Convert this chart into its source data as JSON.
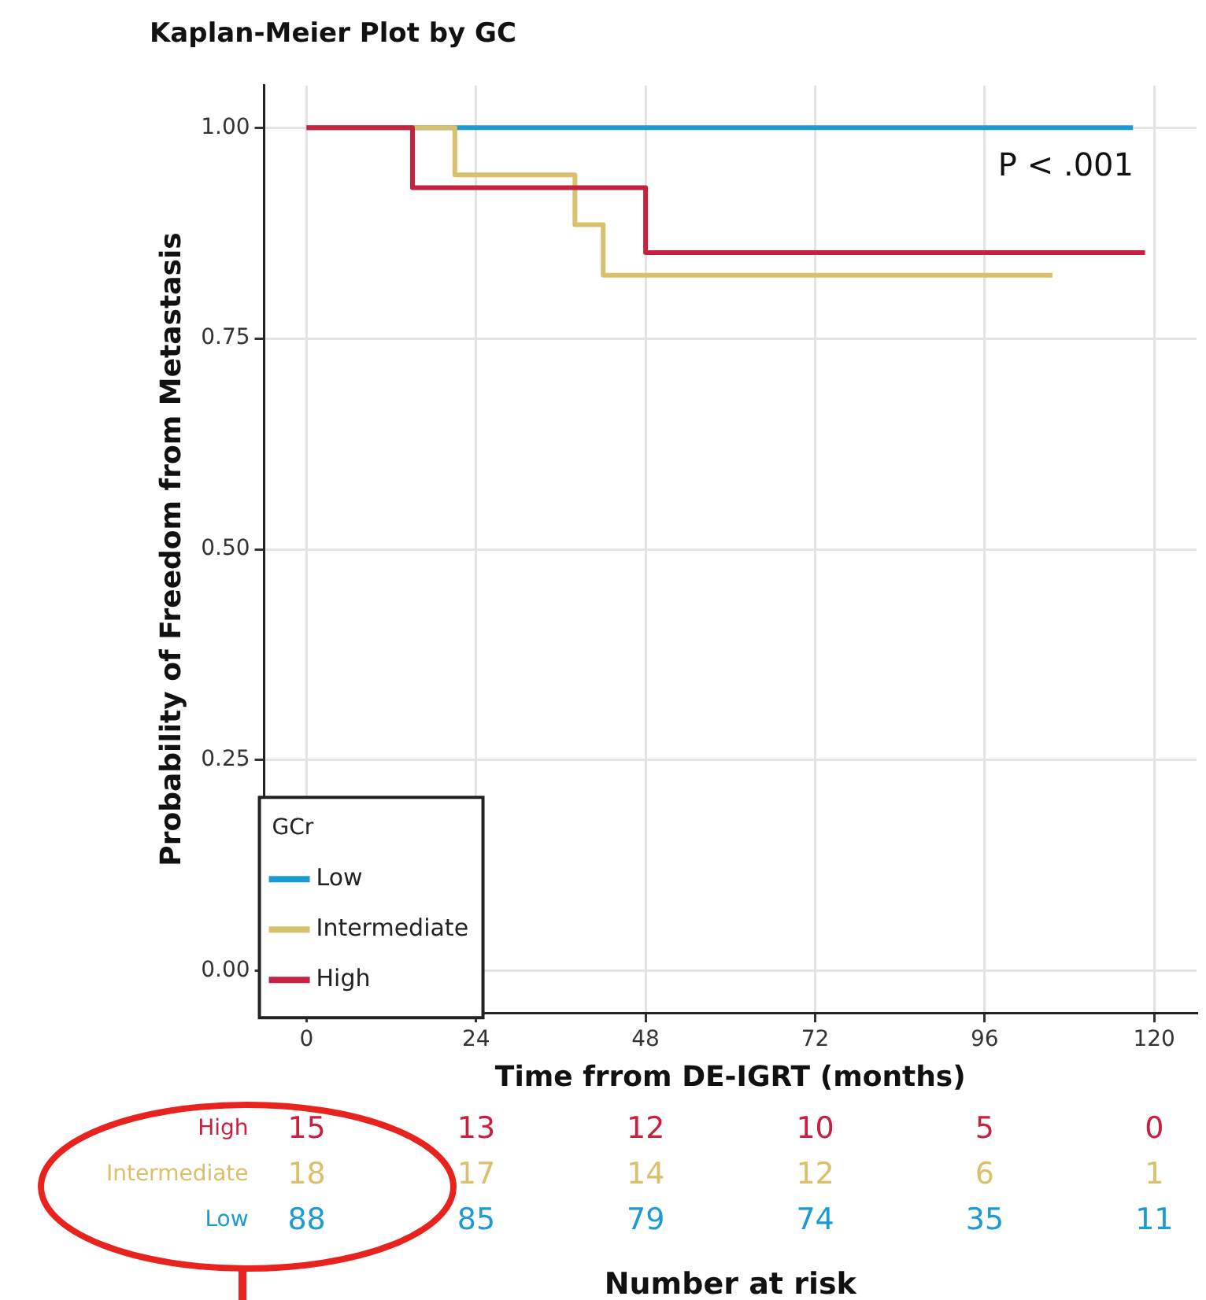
{
  "chart_data": {
    "type": "step",
    "title": "Kaplan-Meier Plot by GC",
    "xlabel": "Time frrom DE-IGRT (months)",
    "ylabel": "Probability of Freedom from Metastasis",
    "legend_title": "GCr",
    "series": [
      {
        "name": "Low",
        "color": "#1b9ad6",
        "x": [
          0,
          117
        ],
        "values": [
          1,
          1
        ]
      },
      {
        "name": "Intermediate",
        "color": "#d9c06a",
        "x": [
          0,
          21,
          38,
          42,
          105.6
        ],
        "values": [
          1,
          0.944,
          0.885,
          0.825,
          0.825
        ]
      },
      {
        "name": "High",
        "color": "#c8213f",
        "x": [
          0,
          15,
          48,
          118.7
        ],
        "values": [
          1,
          0.929,
          0.852,
          0.852
        ]
      }
    ],
    "xlim": [
      -6,
      126
    ],
    "xticks": [
      0,
      24,
      48,
      72,
      96,
      120
    ],
    "ylim": [
      -0.05,
      1.05
    ],
    "yticks": [
      {
        "value": 0,
        "label": "0.00"
      },
      {
        "value": 0.25,
        "label": "0.25"
      },
      {
        "value": 0.5,
        "label": "0.50"
      },
      {
        "value": 0.75,
        "label": "0.75"
      },
      {
        "value": 1,
        "label": "1.00"
      }
    ],
    "grid": true,
    "legend": "bottom left",
    "line_style": "solid",
    "marker": "none",
    "annotations": [
      "P < .001",
      "Number at risk",
      "High",
      "15",
      "13",
      "12",
      "10",
      "5",
      "0",
      "Intermediate",
      "18",
      "17",
      "14",
      "12",
      "6",
      "1",
      "Low",
      "88",
      "85",
      "79",
      "74",
      "35",
      "11"
    ]
  }
}
